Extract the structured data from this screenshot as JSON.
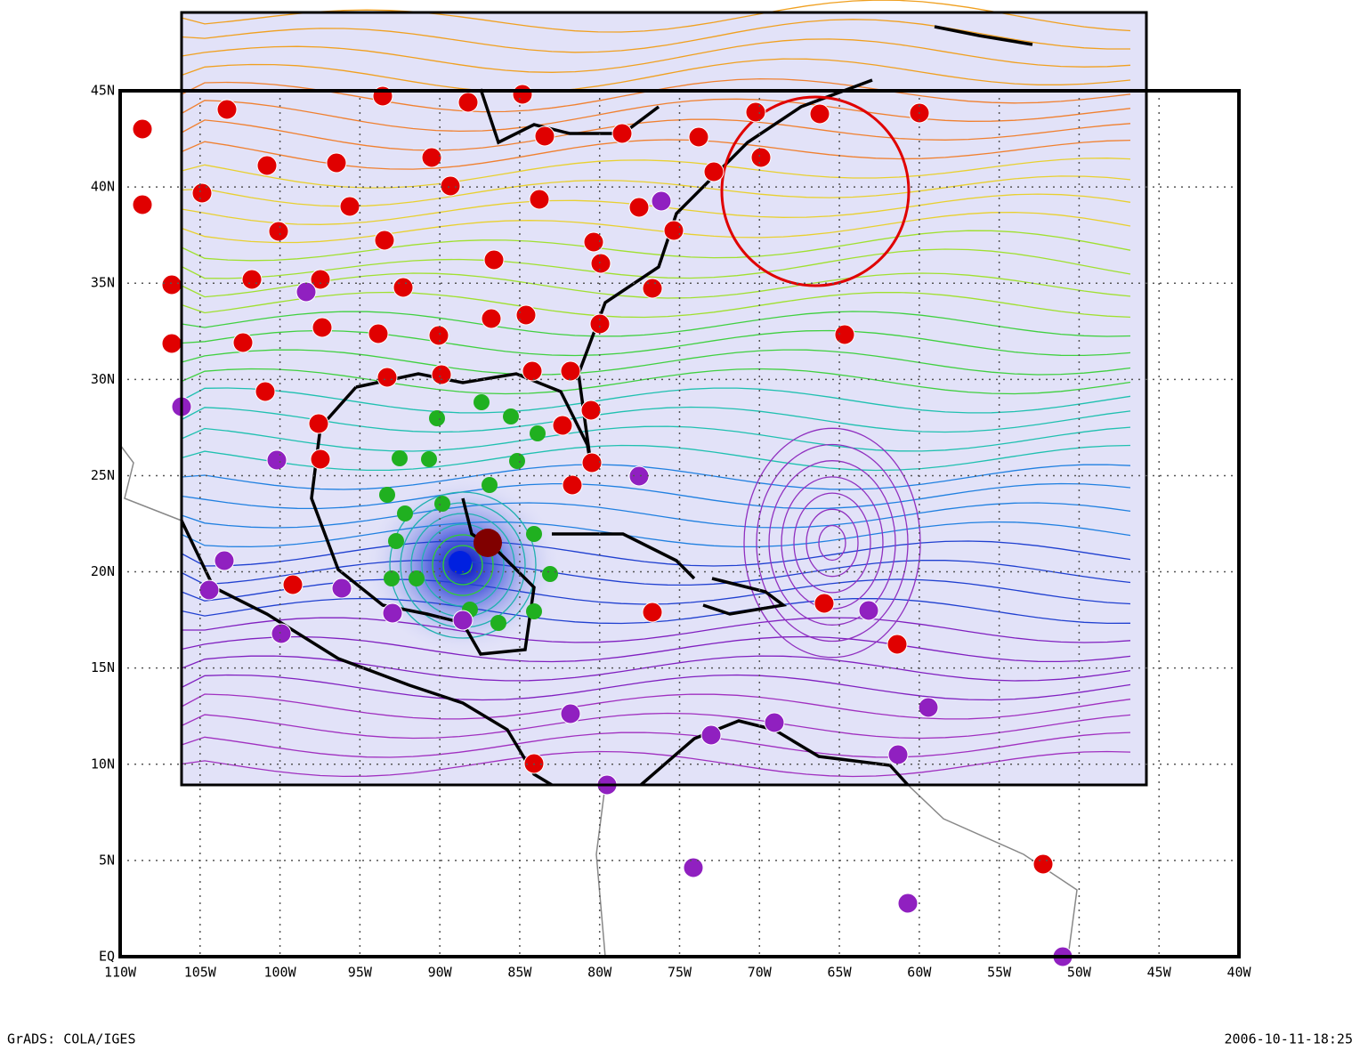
{
  "map": {
    "xlim": [
      -110,
      -40
    ],
    "ylim": [
      0,
      45
    ],
    "xticks": [
      {
        "value": -110,
        "label": "110W"
      },
      {
        "value": -105,
        "label": "105W"
      },
      {
        "value": -100,
        "label": "100W"
      },
      {
        "value": -95,
        "label": "95W"
      },
      {
        "value": -90,
        "label": "90W"
      },
      {
        "value": -85,
        "label": "85W"
      },
      {
        "value": -80,
        "label": "80W"
      },
      {
        "value": -75,
        "label": "75W"
      },
      {
        "value": -70,
        "label": "70W"
      },
      {
        "value": -65,
        "label": "65W"
      },
      {
        "value": -60,
        "label": "60W"
      },
      {
        "value": -55,
        "label": "55W"
      },
      {
        "value": -50,
        "label": "50W"
      },
      {
        "value": -45,
        "label": "45W"
      },
      {
        "value": -40,
        "label": "40W"
      }
    ],
    "yticks": [
      {
        "value": 0,
        "label": "EQ"
      },
      {
        "value": 5,
        "label": "5N"
      },
      {
        "value": 10,
        "label": "10N"
      },
      {
        "value": 15,
        "label": "15N"
      },
      {
        "value": 20,
        "label": "20N"
      },
      {
        "value": 25,
        "label": "25N"
      },
      {
        "value": 30,
        "label": "30N"
      },
      {
        "value": 35,
        "label": "35N"
      },
      {
        "value": 40,
        "label": "40N"
      },
      {
        "value": 45,
        "label": "45N"
      }
    ],
    "grid": true
  },
  "footer": {
    "left": "GrADS: COLA/IGES",
    "right": "2006-10-11-18:25"
  }
}
